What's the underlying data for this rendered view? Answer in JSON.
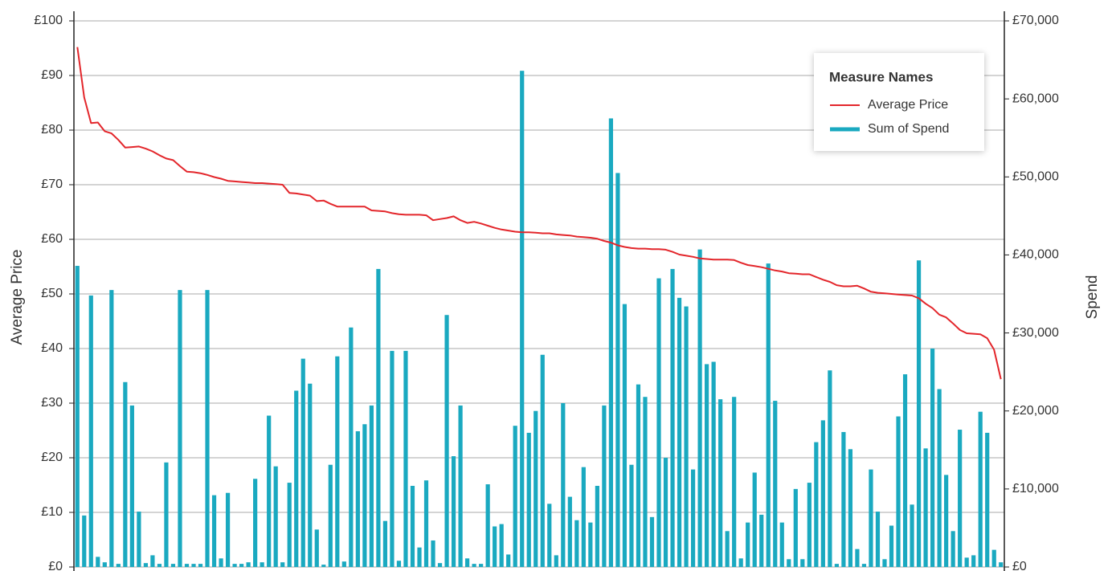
{
  "chart_data": {
    "type": "bar_line_dual_axis",
    "y_label": "Average Price",
    "y2_label": "Spend",
    "legend_title": "Measure Names",
    "legend": "upper right",
    "grid": true,
    "ylim": [
      0,
      100
    ],
    "yticks": [
      {
        "value": 0,
        "label": "£0"
      },
      {
        "value": 10,
        "label": "£10"
      },
      {
        "value": 20,
        "label": "£20"
      },
      {
        "value": 30,
        "label": "£30"
      },
      {
        "value": 40,
        "label": "£40"
      },
      {
        "value": 50,
        "label": "£50"
      },
      {
        "value": 60,
        "label": "£60"
      },
      {
        "value": 70,
        "label": "£70"
      },
      {
        "value": 80,
        "label": "£80"
      },
      {
        "value": 90,
        "label": "£90"
      },
      {
        "value": 100,
        "label": "£100"
      }
    ],
    "y2lim": [
      0,
      70000
    ],
    "y2ticks": [
      {
        "value": 0,
        "label": "£0"
      },
      {
        "value": 10000,
        "label": "£10,000"
      },
      {
        "value": 20000,
        "label": "£20,000"
      },
      {
        "value": 30000,
        "label": "£30,000"
      },
      {
        "value": 40000,
        "label": "£40,000"
      },
      {
        "value": 50000,
        "label": "£50,000"
      },
      {
        "value": 60000,
        "label": "£60,000"
      },
      {
        "value": 70000,
        "label": "£70,000"
      }
    ],
    "series": [
      {
        "name": "Average Price",
        "type": "line",
        "color": "#e3262b",
        "values": [
          95.2,
          86,
          81.3,
          81.4,
          79.8,
          79.4,
          78.2,
          76.8,
          76.9,
          77.0,
          76.6,
          76.1,
          75.4,
          74.8,
          74.5,
          73.4,
          72.4,
          72.3,
          72.1,
          71.8,
          71.4,
          71.1,
          70.7,
          70.6,
          70.5,
          70.4,
          70.3,
          70.3,
          70.2,
          70.1,
          70.0,
          68.5,
          68.4,
          68.2,
          68.0,
          67.0,
          67.1,
          66.5,
          66.0,
          66.0,
          66.0,
          66.0,
          66.0,
          65.3,
          65.2,
          65.1,
          64.8,
          64.6,
          64.5,
          64.5,
          64.5,
          64.4,
          63.5,
          63.7,
          63.9,
          64.2,
          63.5,
          63.0,
          63.2,
          62.9,
          62.5,
          62.1,
          61.8,
          61.6,
          61.4,
          61.3,
          61.3,
          61.2,
          61.1,
          61.1,
          60.9,
          60.8,
          60.7,
          60.5,
          60.4,
          60.3,
          60.1,
          59.7,
          59.4,
          58.9,
          58.6,
          58.4,
          58.3,
          58.3,
          58.2,
          58.2,
          58.1,
          57.7,
          57.2,
          57.0,
          56.8,
          56.5,
          56.4,
          56.3,
          56.3,
          56.3,
          56.2,
          55.7,
          55.3,
          55.1,
          54.9,
          54.6,
          54.3,
          54.1,
          53.8,
          53.7,
          53.6,
          53.6,
          53.1,
          52.6,
          52.2,
          51.6,
          51.4,
          51.4,
          51.5,
          51.0,
          50.4,
          50.2,
          50.1,
          50.0,
          49.9,
          49.8,
          49.7,
          49.2,
          48.2,
          47.4,
          46.2,
          45.7,
          44.6,
          43.4,
          42.8,
          42.7,
          42.6,
          41.9,
          39.8,
          34.4
        ]
      },
      {
        "name": "Sum of Spend",
        "type": "bar",
        "axis": "y2",
        "color": "#1aa9c0",
        "values": [
          38600,
          6600,
          34800,
          1300,
          600,
          35500,
          400,
          23700,
          20700,
          7100,
          500,
          1500,
          400,
          13400,
          400,
          35500,
          400,
          400,
          400,
          35500,
          9200,
          1100,
          9500,
          400,
          400,
          600,
          11300,
          600,
          19400,
          12900,
          600,
          10800,
          22600,
          26700,
          23500,
          4800,
          300,
          13100,
          27000,
          700,
          30700,
          17400,
          18300,
          20700,
          38200,
          5900,
          27700,
          800,
          27700,
          10400,
          2500,
          11100,
          3400,
          500,
          32300,
          14200,
          20700,
          1100,
          400,
          400,
          10600,
          5200,
          5500,
          1600,
          18100,
          63600,
          17200,
          20000,
          27200,
          8100,
          1500,
          21000,
          9000,
          6000,
          12800,
          5700,
          10400,
          20700,
          57500,
          50500,
          33700,
          13100,
          23400,
          21800,
          6400,
          37000,
          14000,
          38200,
          34500,
          33400,
          12500,
          40700,
          26000,
          26300,
          21500,
          4600,
          21800,
          1100,
          5700,
          12100,
          6700,
          38900,
          21300,
          5700,
          1000,
          10000,
          1000,
          10800,
          16000,
          18800,
          25200,
          400,
          17300,
          15100,
          2300,
          400,
          12500,
          7100,
          1000,
          5300,
          19300,
          24700,
          8000,
          39300,
          15200,
          28000,
          22800,
          11800,
          4600,
          17600,
          1200,
          1500,
          19900,
          17200,
          2200,
          600
        ]
      }
    ]
  }
}
